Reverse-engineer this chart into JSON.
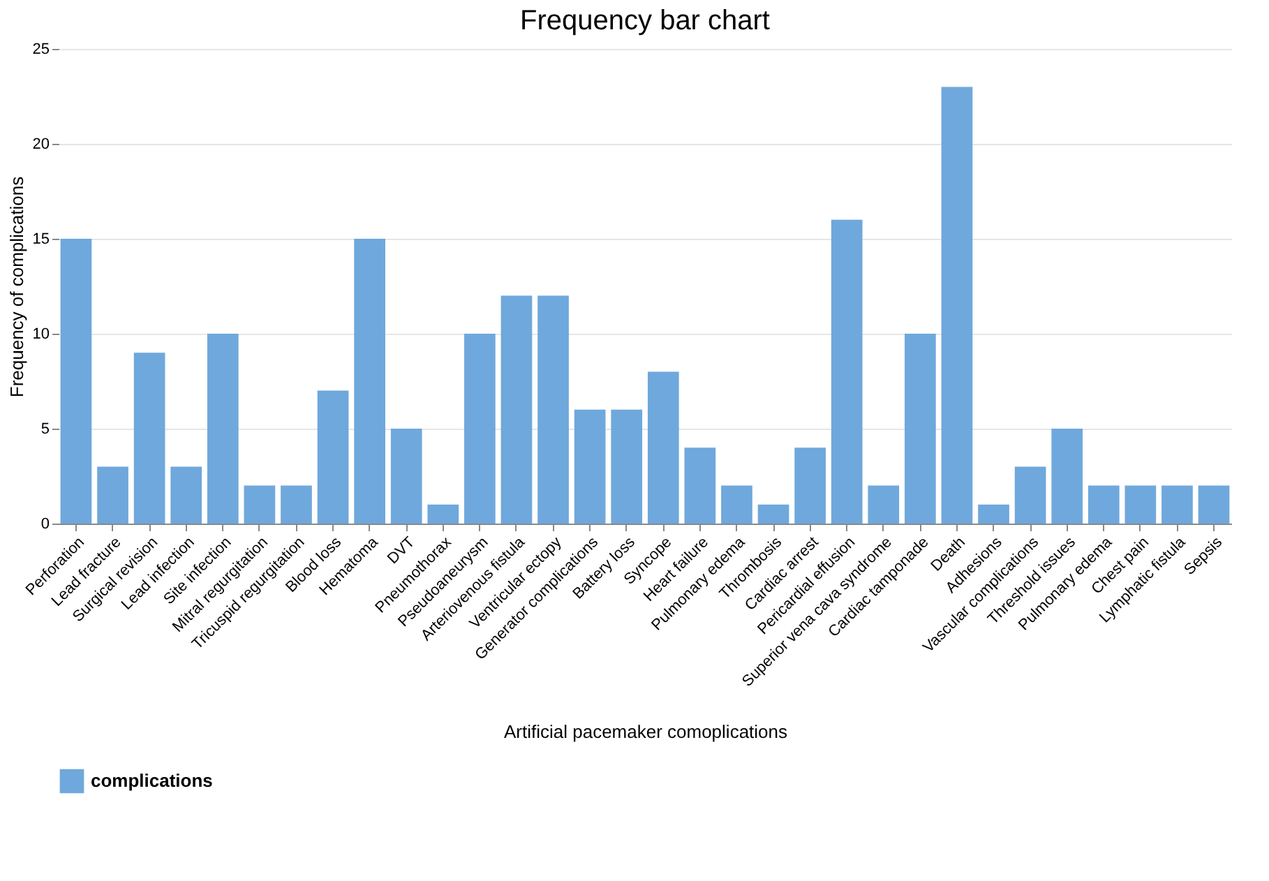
{
  "chart_data": {
    "type": "bar",
    "title": "Frequency bar chart",
    "xlabel": "Artificial pacemaker comoplications",
    "ylabel": "Frequency of complications",
    "categories": [
      "Perforation",
      "Lead fracture",
      "Surgical revision",
      "Lead infection",
      "Site infection",
      "Mitral regurgitation",
      "Tricuspid regurgitation",
      "Blood loss",
      "Hematoma",
      "DVT",
      "Pneumothorax",
      "Pseudoaneurysm",
      "Arteriovenous fistula",
      "Ventricular ectopy",
      "Generator complications",
      "Battery loss",
      "Syncope",
      "Heart failure",
      "Pulmonary edema",
      "Thrombosis",
      "Cardiac arrest",
      "Pericardial effusion",
      "Superior vena cava syndrome",
      "Cardiac tamponade",
      "Death",
      "Adhesions",
      "Vascular complications",
      "Threshold issues",
      "Pulmonary edema",
      "Chest pain",
      "Lymphatic fistula",
      "Sepsis"
    ],
    "series": [
      {
        "name": "complications",
        "color": "#6fa8dc",
        "values": [
          15,
          3,
          9,
          3,
          10,
          2,
          2,
          7,
          15,
          5,
          1,
          10,
          12,
          12,
          6,
          6,
          8,
          4,
          2,
          1,
          4,
          16,
          2,
          10,
          23,
          1,
          3,
          5,
          2,
          2,
          2,
          2
        ]
      }
    ],
    "ylim": [
      0,
      25
    ],
    "yticks": [
      0,
      5,
      10,
      15,
      20,
      25
    ],
    "grid": "y",
    "legend": "bottom"
  }
}
